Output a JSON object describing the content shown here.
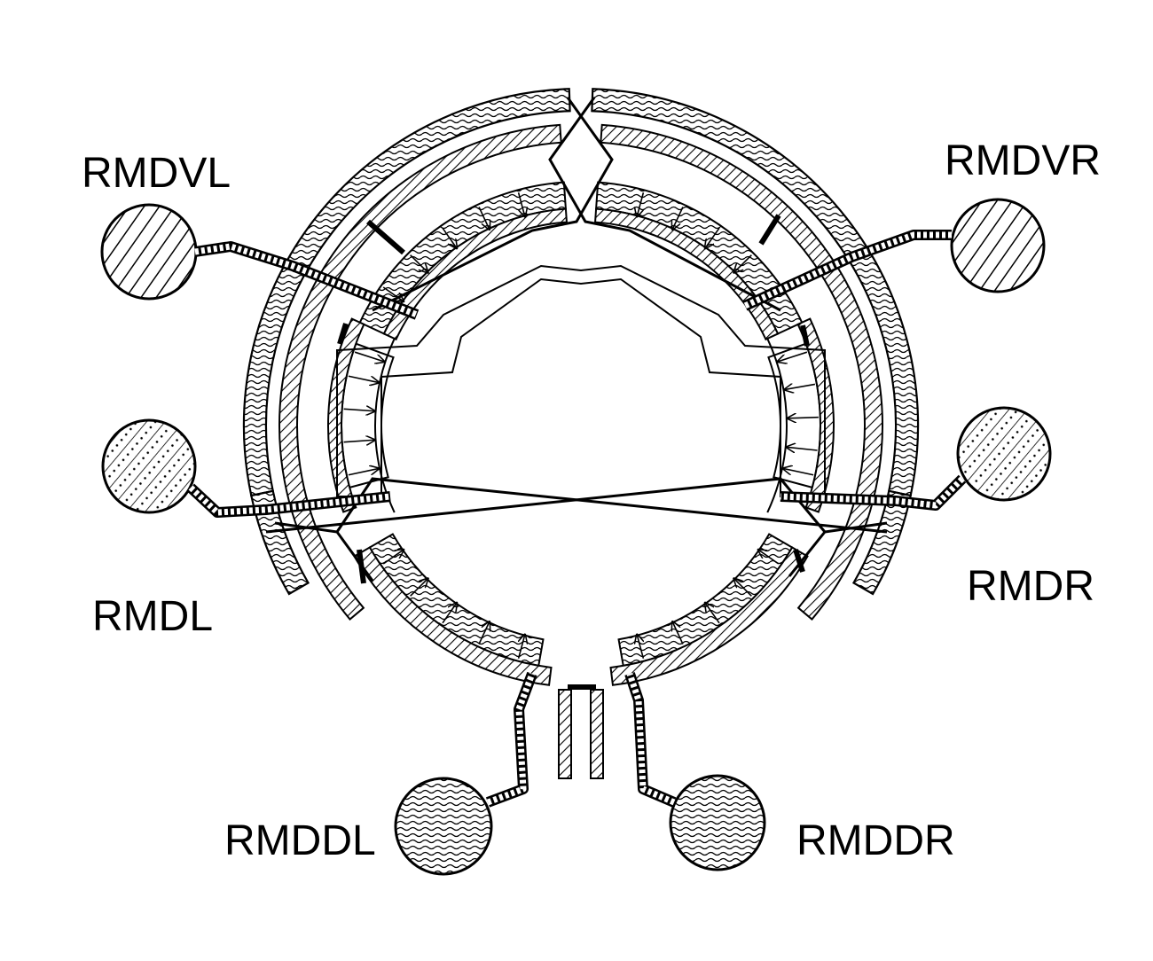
{
  "figure": {
    "labels": {
      "rmdvl": "RMDVL",
      "rmdvr": "RMDVR",
      "rmdl": "RMDL",
      "rmdr": "RMDR",
      "rmddl": "RMDDL",
      "rmddr": "RMDDR"
    }
  },
  "colors": {
    "ink": "#000000",
    "paper": "#ffffff"
  }
}
